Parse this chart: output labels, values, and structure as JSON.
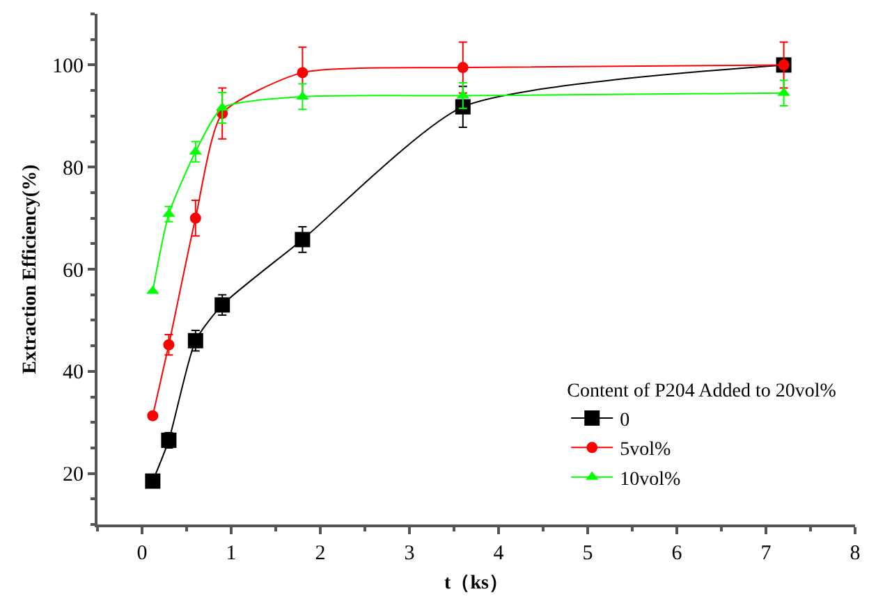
{
  "chart_data": {
    "type": "line",
    "xlabel": "t（ks）",
    "ylabel": "Extraction Efficiency(%)",
    "legend_title": "Content of P204 Added to 20vol%",
    "legend": "bottom right",
    "grid": false,
    "line_style": "solid",
    "x": [
      0.12,
      0.3,
      0.6,
      0.9,
      1.8,
      3.6,
      7.2
    ],
    "xlim": [
      -0.5,
      8
    ],
    "xticks": [
      0,
      1,
      2,
      3,
      4,
      5,
      6,
      7,
      8
    ],
    "ylim": [
      10,
      110
    ],
    "yticks": [
      20,
      40,
      60,
      80,
      100
    ],
    "series": [
      {
        "name": "0",
        "color": "#000000",
        "marker": "square",
        "values": [
          18.5,
          26.5,
          46,
          53,
          65.8,
          91.8,
          100
        ],
        "errors": [
          null,
          1.5,
          2,
          2,
          2.5,
          4,
          null
        ]
      },
      {
        "name": "5vol%",
        "color": "#ff0000",
        "marker": "circle",
        "values": [
          31.3,
          45.2,
          70,
          90.5,
          98.5,
          99.5,
          100
        ],
        "errors": [
          null,
          2,
          3.5,
          5,
          5,
          5,
          4.5
        ]
      },
      {
        "name": "10vol%",
        "color": "#00ff00",
        "marker": "triangle",
        "values": [
          55.7,
          70.8,
          83,
          91.6,
          93.8,
          94,
          94.5
        ],
        "errors": [
          null,
          1.5,
          2,
          3,
          2.5,
          2.5,
          2.5
        ]
      }
    ]
  }
}
